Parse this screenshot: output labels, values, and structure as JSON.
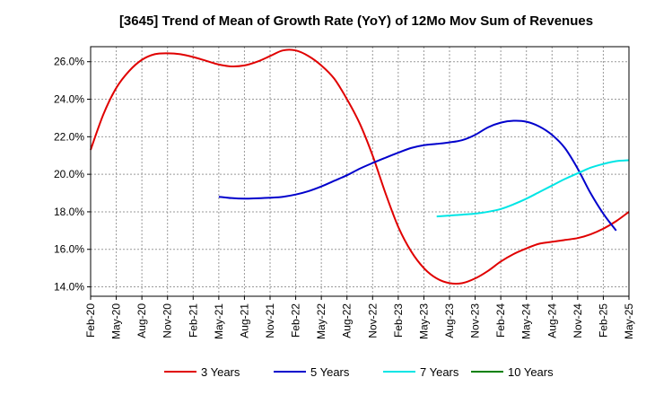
{
  "chart_data": {
    "type": "line",
    "title": "[3645]  Trend of Mean of Growth Rate (YoY) of 12Mo Mov Sum of Revenues",
    "xlabel": "",
    "ylabel": "",
    "ylim": [
      13.5,
      26.8
    ],
    "y_ticks": [
      14,
      16,
      18,
      20,
      22,
      24,
      26
    ],
    "y_tick_labels": [
      "14.0%",
      "16.0%",
      "18.0%",
      "20.0%",
      "22.0%",
      "24.0%",
      "26.0%"
    ],
    "x_tick_labels": [
      "Feb-20",
      "May-20",
      "Aug-20",
      "Nov-20",
      "Feb-21",
      "May-21",
      "Aug-21",
      "Nov-21",
      "Feb-22",
      "May-22",
      "Aug-22",
      "Nov-22",
      "Feb-23",
      "May-23",
      "Aug-23",
      "Nov-23",
      "Feb-24",
      "May-24",
      "Aug-24",
      "Nov-24",
      "Feb-25",
      "May-25"
    ],
    "grid": true,
    "legend_position": "bottom",
    "series": [
      {
        "name": "3 Years",
        "color": "#e00000",
        "points": [
          [
            0,
            21.3
          ],
          [
            1,
            23.2
          ],
          [
            2,
            24.6
          ],
          [
            3,
            25.5
          ],
          [
            4,
            26.1
          ],
          [
            5,
            26.4
          ],
          [
            6,
            26.45
          ],
          [
            7,
            26.4
          ],
          [
            8,
            26.25
          ],
          [
            9,
            26.05
          ],
          [
            10,
            25.85
          ],
          [
            11,
            25.75
          ],
          [
            12,
            25.8
          ],
          [
            13,
            26.0
          ],
          [
            14,
            26.3
          ],
          [
            15,
            26.6
          ],
          [
            16,
            26.6
          ],
          [
            17,
            26.3
          ],
          [
            18,
            25.8
          ],
          [
            19,
            25.1
          ],
          [
            20,
            24.0
          ],
          [
            21,
            22.7
          ],
          [
            22,
            21.0
          ],
          [
            23,
            19.0
          ],
          [
            24,
            17.2
          ],
          [
            25,
            15.9
          ],
          [
            26,
            15.0
          ],
          [
            27,
            14.45
          ],
          [
            28,
            14.2
          ],
          [
            29,
            14.2
          ],
          [
            30,
            14.45
          ],
          [
            31,
            14.85
          ],
          [
            32,
            15.35
          ],
          [
            33,
            15.75
          ],
          [
            34,
            16.05
          ],
          [
            35,
            16.3
          ],
          [
            36,
            16.4
          ],
          [
            37,
            16.5
          ],
          [
            38,
            16.6
          ],
          [
            39,
            16.8
          ],
          [
            40,
            17.1
          ],
          [
            41,
            17.5
          ],
          [
            42,
            18.0
          ]
        ]
      },
      {
        "name": "5 Years",
        "color": "#0000cc",
        "points": [
          [
            10,
            18.8
          ],
          [
            11,
            18.73
          ],
          [
            12,
            18.7
          ],
          [
            13,
            18.72
          ],
          [
            14,
            18.75
          ],
          [
            15,
            18.8
          ],
          [
            16,
            18.92
          ],
          [
            17,
            19.1
          ],
          [
            18,
            19.35
          ],
          [
            19,
            19.65
          ],
          [
            20,
            19.95
          ],
          [
            21,
            20.3
          ],
          [
            22,
            20.6
          ],
          [
            23,
            20.88
          ],
          [
            24,
            21.15
          ],
          [
            25,
            21.4
          ],
          [
            26,
            21.55
          ],
          [
            27,
            21.62
          ],
          [
            28,
            21.7
          ],
          [
            29,
            21.82
          ],
          [
            30,
            22.1
          ],
          [
            31,
            22.5
          ],
          [
            32,
            22.75
          ],
          [
            33,
            22.85
          ],
          [
            34,
            22.8
          ],
          [
            35,
            22.55
          ],
          [
            36,
            22.1
          ],
          [
            37,
            21.4
          ],
          [
            38,
            20.3
          ],
          [
            39,
            19.0
          ],
          [
            40,
            17.9
          ],
          [
            41,
            17.0
          ]
        ]
      },
      {
        "name": "7 Years",
        "color": "#00e5e5",
        "points": [
          [
            27,
            17.75
          ],
          [
            28,
            17.8
          ],
          [
            29,
            17.85
          ],
          [
            30,
            17.9
          ],
          [
            31,
            18.0
          ],
          [
            32,
            18.15
          ],
          [
            33,
            18.4
          ],
          [
            34,
            18.7
          ],
          [
            35,
            19.05
          ],
          [
            36,
            19.4
          ],
          [
            37,
            19.75
          ],
          [
            38,
            20.05
          ],
          [
            39,
            20.35
          ],
          [
            40,
            20.55
          ],
          [
            41,
            20.7
          ],
          [
            42,
            20.75
          ]
        ]
      },
      {
        "name": "10 Years",
        "color": "#008000",
        "points": []
      }
    ]
  }
}
